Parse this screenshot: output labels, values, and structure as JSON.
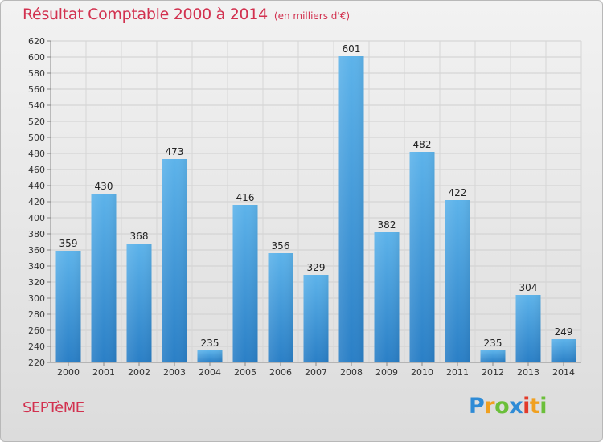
{
  "title": {
    "main": "Résultat Comptable 2000 à 2014",
    "unit": "(en milliers d'€)"
  },
  "commune": "SEPTèME",
  "logo_text": "Proxiti",
  "colors": {
    "bar": "#2e8ad2",
    "bar_light": "#5db3ea",
    "title": "#d2314f"
  },
  "chart_data": {
    "type": "bar",
    "title": "Résultat Comptable 2000 à 2014",
    "ylabel": "(en milliers d'€)",
    "xlabel": "",
    "categories": [
      "2000",
      "2001",
      "2002",
      "2003",
      "2004",
      "2005",
      "2006",
      "2007",
      "2008",
      "2009",
      "2010",
      "2011",
      "2012",
      "2013",
      "2014"
    ],
    "values": [
      359,
      430,
      368,
      473,
      235,
      416,
      356,
      329,
      601,
      382,
      482,
      422,
      235,
      304,
      249
    ],
    "ylim": [
      220,
      620
    ],
    "ytick_step": 20,
    "grid": true
  }
}
